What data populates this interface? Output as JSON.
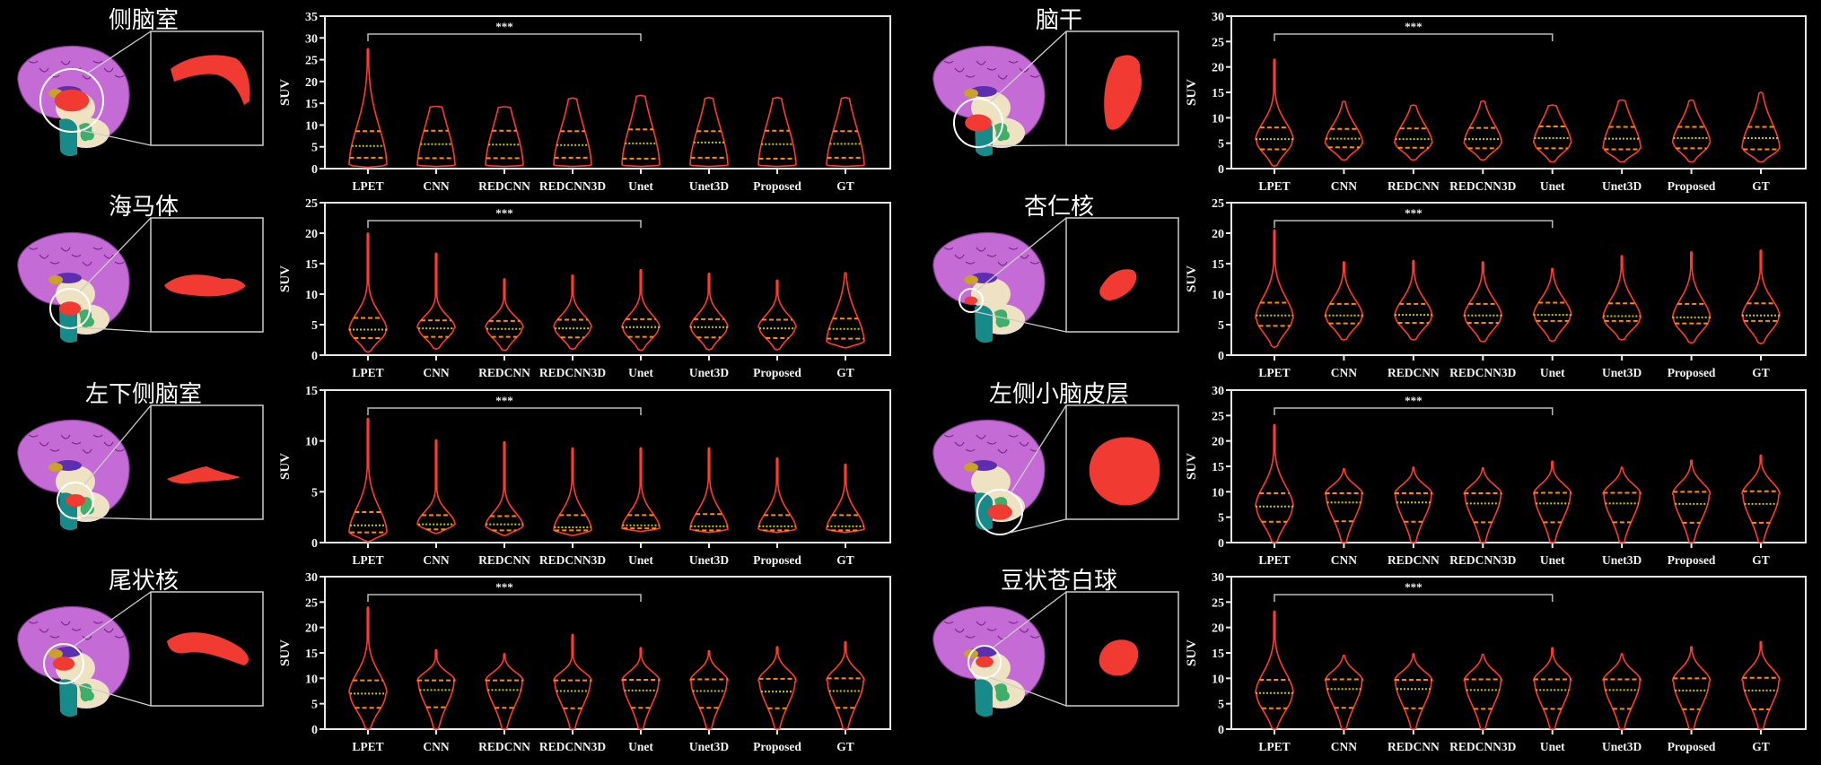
{
  "colors": {
    "background": "#000000",
    "violin_outline": "#ff3b30",
    "quartile_line": "#ff8c00",
    "median_line": "#c8c800",
    "axis": "#e8e8e8",
    "bracket": "#bbbbbb",
    "cortex": "#c46bd6",
    "highlight": "#f03a32"
  },
  "panels": [
    {
      "title": "侧脑室"
    },
    {
      "title": "海马体"
    },
    {
      "title": "左下侧脑室"
    },
    {
      "title": "尾状核"
    },
    {
      "title": "脑干"
    },
    {
      "title": "杏仁核"
    },
    {
      "title": "左侧小脑皮层"
    },
    {
      "title": "豆状苍白球"
    }
  ],
  "chart_data": [
    {
      "type": "violin",
      "ylabel": "SUV",
      "ylim": [
        0,
        35
      ],
      "yticks": [
        0,
        5,
        10,
        15,
        20,
        25,
        30,
        35
      ],
      "categories": [
        "LPET",
        "CNN",
        "REDCNN",
        "REDCNN3D",
        "Unet",
        "Unet3D",
        "Proposed",
        "GT"
      ],
      "significance": {
        "label": "***",
        "from": "LPET",
        "to": "Unet"
      },
      "stats": [
        {
          "min": 0.3,
          "q1": 2.5,
          "median": 5.2,
          "q3": 8.6,
          "max": 27.5,
          "mode": 0.8
        },
        {
          "min": 0.5,
          "q1": 2.4,
          "median": 5.6,
          "q3": 8.7,
          "max": 14.3,
          "mode": 0.8
        },
        {
          "min": 0.5,
          "q1": 2.4,
          "median": 5.5,
          "q3": 8.7,
          "max": 14.2,
          "mode": 0.8
        },
        {
          "min": 0.5,
          "q1": 2.5,
          "median": 5.4,
          "q3": 8.6,
          "max": 16.2,
          "mode": 0.8
        },
        {
          "min": 0.5,
          "q1": 2.3,
          "median": 5.8,
          "q3": 9.0,
          "max": 16.8,
          "mode": 0.8
        },
        {
          "min": 0.5,
          "q1": 2.5,
          "median": 6.0,
          "q3": 8.6,
          "max": 16.3,
          "mode": 0.8
        },
        {
          "min": 0.5,
          "q1": 2.3,
          "median": 5.6,
          "q3": 8.7,
          "max": 16.3,
          "mode": 0.8
        },
        {
          "min": 0.5,
          "q1": 2.5,
          "median": 5.7,
          "q3": 8.6,
          "max": 16.3,
          "mode": 0.8
        }
      ]
    },
    {
      "type": "violin",
      "ylabel": "SUV",
      "ylim": [
        0,
        25
      ],
      "yticks": [
        0,
        5,
        10,
        15,
        20,
        25
      ],
      "categories": [
        "LPET",
        "CNN",
        "REDCNN",
        "REDCNN3D",
        "Unet",
        "Unet3D",
        "Proposed",
        "GT"
      ],
      "significance": {
        "label": "***",
        "from": "LPET",
        "to": "Unet"
      },
      "stats": [
        {
          "min": 0.5,
          "q1": 2.8,
          "median": 4.2,
          "q3": 6.1,
          "max": 20.0,
          "mode": 4.0
        },
        {
          "min": 1.0,
          "q1": 3.0,
          "median": 4.4,
          "q3": 5.7,
          "max": 16.7,
          "mode": 4.5
        },
        {
          "min": 0.8,
          "q1": 3.0,
          "median": 4.3,
          "q3": 5.6,
          "max": 12.5,
          "mode": 4.5
        },
        {
          "min": 1.0,
          "q1": 2.9,
          "median": 4.4,
          "q3": 5.8,
          "max": 13.1,
          "mode": 4.5
        },
        {
          "min": 0.8,
          "q1": 3.0,
          "median": 4.6,
          "q3": 5.9,
          "max": 14.0,
          "mode": 4.5
        },
        {
          "min": 0.9,
          "q1": 2.9,
          "median": 4.6,
          "q3": 5.9,
          "max": 13.4,
          "mode": 4.5
        },
        {
          "min": 0.9,
          "q1": 2.8,
          "median": 4.4,
          "q3": 5.8,
          "max": 12.3,
          "mode": 4.5
        },
        {
          "min": 1.2,
          "q1": 2.7,
          "median": 4.3,
          "q3": 6.0,
          "max": 13.5,
          "mode": 2.2
        }
      ]
    },
    {
      "type": "violin",
      "ylabel": "SUV",
      "ylim": [
        0,
        15
      ],
      "yticks": [
        0,
        5,
        10,
        15
      ],
      "categories": [
        "LPET",
        "CNN",
        "REDCNN",
        "REDCNN3D",
        "Unet",
        "Unet3D",
        "Proposed",
        "GT"
      ],
      "significance": {
        "label": "***",
        "from": "LPET",
        "to": "Unet"
      },
      "stats": [
        {
          "min": 0.1,
          "q1": 1.0,
          "median": 1.7,
          "q3": 3.0,
          "max": 12.2,
          "mode": 1.0
        },
        {
          "min": 0.9,
          "q1": 1.3,
          "median": 1.8,
          "q3": 2.7,
          "max": 10.1,
          "mode": 1.8
        },
        {
          "min": 0.7,
          "q1": 1.2,
          "median": 1.8,
          "q3": 2.6,
          "max": 9.9,
          "mode": 1.6
        },
        {
          "min": 0.7,
          "q1": 1.2,
          "median": 1.5,
          "q3": 2.7,
          "max": 9.3,
          "mode": 1.2
        },
        {
          "min": 1.1,
          "q1": 1.4,
          "median": 1.7,
          "q3": 2.7,
          "max": 9.3,
          "mode": 1.4
        },
        {
          "min": 1.0,
          "q1": 1.2,
          "median": 1.6,
          "q3": 2.8,
          "max": 9.3,
          "mode": 1.3
        },
        {
          "min": 1.0,
          "q1": 1.2,
          "median": 1.6,
          "q3": 2.7,
          "max": 8.3,
          "mode": 1.3
        },
        {
          "min": 1.0,
          "q1": 1.2,
          "median": 1.6,
          "q3": 2.7,
          "max": 7.7,
          "mode": 1.3
        }
      ]
    },
    {
      "type": "violin",
      "ylabel": "SUV",
      "ylim": [
        0,
        30
      ],
      "yticks": [
        0,
        5,
        10,
        15,
        20,
        25,
        30
      ],
      "categories": [
        "LPET",
        "CNN",
        "REDCNN",
        "REDCNN3D",
        "Unet",
        "Unet3D",
        "Proposed",
        "GT"
      ],
      "significance": {
        "label": "***",
        "from": "LPET",
        "to": "Unet"
      },
      "stats": [
        {
          "min": 0,
          "q1": 4.2,
          "median": 7.0,
          "q3": 9.6,
          "max": 24.0,
          "mode": 7.0
        },
        {
          "min": 0,
          "q1": 4.3,
          "median": 7.7,
          "q3": 9.6,
          "max": 15.6,
          "mode": 9.5
        },
        {
          "min": 0,
          "q1": 4.2,
          "median": 7.7,
          "q3": 9.6,
          "max": 14.8,
          "mode": 9.5
        },
        {
          "min": 0,
          "q1": 4.1,
          "median": 7.5,
          "q3": 9.6,
          "max": 18.6,
          "mode": 9.5
        },
        {
          "min": 0,
          "q1": 4.2,
          "median": 7.6,
          "q3": 9.7,
          "max": 16.0,
          "mode": 9.5
        },
        {
          "min": 0,
          "q1": 4.2,
          "median": 7.5,
          "q3": 9.8,
          "max": 15.4,
          "mode": 9.5
        },
        {
          "min": 0,
          "q1": 4.1,
          "median": 7.4,
          "q3": 9.9,
          "max": 16.2,
          "mode": 9.5
        },
        {
          "min": 0,
          "q1": 4.2,
          "median": 7.5,
          "q3": 10.0,
          "max": 17.2,
          "mode": 9.5
        }
      ]
    },
    {
      "type": "violin",
      "ylabel": "SUV",
      "ylim": [
        0,
        30
      ],
      "yticks": [
        0,
        5,
        10,
        15,
        20,
        25,
        30
      ],
      "categories": [
        "LPET",
        "CNN",
        "REDCNN",
        "REDCNN3D",
        "Unet",
        "Unet3D",
        "Proposed",
        "GT"
      ],
      "significance": {
        "label": "***",
        "from": "LPET",
        "to": "Unet"
      },
      "stats": [
        {
          "min": 0.5,
          "q1": 3.8,
          "median": 5.8,
          "q3": 8.1,
          "max": 21.5,
          "mode": 5.5
        },
        {
          "min": 1.7,
          "q1": 4.2,
          "median": 5.9,
          "q3": 7.8,
          "max": 13.2,
          "mode": 5.0
        },
        {
          "min": 1.7,
          "q1": 4.1,
          "median": 5.8,
          "q3": 7.9,
          "max": 12.5,
          "mode": 5.0
        },
        {
          "min": 1.7,
          "q1": 4.0,
          "median": 5.8,
          "q3": 8.0,
          "max": 13.3,
          "mode": 5.0
        },
        {
          "min": 1.3,
          "q1": 4.0,
          "median": 6.0,
          "q3": 8.3,
          "max": 12.5,
          "mode": 5.0
        },
        {
          "min": 1.3,
          "q1": 3.8,
          "median": 5.9,
          "q3": 8.2,
          "max": 13.5,
          "mode": 4.0
        },
        {
          "min": 1.3,
          "q1": 4.0,
          "median": 6.0,
          "q3": 8.2,
          "max": 13.5,
          "mode": 5.0
        },
        {
          "min": 1.3,
          "q1": 3.8,
          "median": 6.0,
          "q3": 8.2,
          "max": 15.0,
          "mode": 4.0
        }
      ]
    },
    {
      "type": "violin",
      "ylabel": "SUV",
      "ylim": [
        0,
        25
      ],
      "yticks": [
        0,
        5,
        10,
        15,
        20,
        25
      ],
      "categories": [
        "LPET",
        "CNN",
        "REDCNN",
        "REDCNN3D",
        "Unet",
        "Unet3D",
        "Proposed",
        "GT"
      ],
      "significance": {
        "label": "***",
        "from": "LPET",
        "to": "Unet"
      },
      "stats": [
        {
          "min": 1.3,
          "q1": 4.8,
          "median": 6.5,
          "q3": 8.6,
          "max": 20.5,
          "mode": 6.0
        },
        {
          "min": 2.5,
          "q1": 5.2,
          "median": 6.5,
          "q3": 8.4,
          "max": 15.3,
          "mode": 6.3
        },
        {
          "min": 2.5,
          "q1": 5.3,
          "median": 6.6,
          "q3": 8.4,
          "max": 15.5,
          "mode": 6.3
        },
        {
          "min": 2.2,
          "q1": 5.3,
          "median": 6.5,
          "q3": 8.4,
          "max": 15.3,
          "mode": 6.3
        },
        {
          "min": 2.3,
          "q1": 5.6,
          "median": 6.6,
          "q3": 8.6,
          "max": 14.2,
          "mode": 6.5
        },
        {
          "min": 2.5,
          "q1": 5.6,
          "median": 6.4,
          "q3": 8.5,
          "max": 16.3,
          "mode": 6.0
        },
        {
          "min": 2.0,
          "q1": 5.2,
          "median": 6.2,
          "q3": 8.4,
          "max": 16.9,
          "mode": 6.0
        },
        {
          "min": 1.9,
          "q1": 5.6,
          "median": 6.5,
          "q3": 8.5,
          "max": 17.2,
          "mode": 6.3
        }
      ]
    },
    {
      "type": "violin",
      "ylabel": "SUV",
      "ylim": [
        0,
        30
      ],
      "yticks": [
        0,
        5,
        10,
        15,
        20,
        25,
        30
      ],
      "categories": [
        "LPET",
        "CNN",
        "REDCNN",
        "REDCNN3D",
        "Unet",
        "Unet3D",
        "Proposed",
        "GT"
      ],
      "significance": {
        "label": "***",
        "from": "LPET",
        "to": "Unet"
      },
      "stats": [
        {
          "min": 0,
          "q1": 4.1,
          "median": 7.1,
          "q3": 9.7,
          "max": 23.2,
          "mode": 7.0
        },
        {
          "min": 0,
          "q1": 4.2,
          "median": 7.9,
          "q3": 9.7,
          "max": 14.5,
          "mode": 9.5
        },
        {
          "min": 0,
          "q1": 4.1,
          "median": 7.9,
          "q3": 9.7,
          "max": 14.8,
          "mode": 9.5
        },
        {
          "min": 0,
          "q1": 4.0,
          "median": 7.7,
          "q3": 9.7,
          "max": 14.7,
          "mode": 9.5
        },
        {
          "min": 0,
          "q1": 4.0,
          "median": 7.7,
          "q3": 9.8,
          "max": 16.0,
          "mode": 9.5
        },
        {
          "min": 0,
          "q1": 4.0,
          "median": 7.7,
          "q3": 9.8,
          "max": 14.8,
          "mode": 9.5
        },
        {
          "min": 0,
          "q1": 3.9,
          "median": 7.6,
          "q3": 10.0,
          "max": 16.2,
          "mode": 9.5
        },
        {
          "min": 0,
          "q1": 3.9,
          "median": 7.6,
          "q3": 10.1,
          "max": 17.2,
          "mode": 9.5
        }
      ]
    },
    {
      "type": "violin",
      "ylabel": "SUV",
      "ylim": [
        0,
        30
      ],
      "yticks": [
        0,
        5,
        10,
        15,
        20,
        25,
        30
      ],
      "categories": [
        "LPET",
        "CNN",
        "REDCNN",
        "REDCNN3D",
        "Unet",
        "Unet3D",
        "Proposed",
        "GT"
      ],
      "significance": {
        "label": "***",
        "from": "LPET",
        "to": "Unet"
      },
      "stats": [
        {
          "min": 0,
          "q1": 4.1,
          "median": 7.1,
          "q3": 9.7,
          "max": 23.2,
          "mode": 7.0
        },
        {
          "min": 0,
          "q1": 4.2,
          "median": 7.9,
          "q3": 9.8,
          "max": 14.5,
          "mode": 9.5
        },
        {
          "min": 0,
          "q1": 4.1,
          "median": 7.9,
          "q3": 9.7,
          "max": 14.8,
          "mode": 9.5
        },
        {
          "min": 0,
          "q1": 4.0,
          "median": 7.7,
          "q3": 9.8,
          "max": 14.7,
          "mode": 9.5
        },
        {
          "min": 0,
          "q1": 4.0,
          "median": 7.7,
          "q3": 9.8,
          "max": 16.0,
          "mode": 9.5
        },
        {
          "min": 0,
          "q1": 4.0,
          "median": 7.7,
          "q3": 9.8,
          "max": 14.8,
          "mode": 9.5
        },
        {
          "min": 0,
          "q1": 3.9,
          "median": 7.6,
          "q3": 10.0,
          "max": 16.2,
          "mode": 9.5
        },
        {
          "min": 0,
          "q1": 3.9,
          "median": 7.6,
          "q3": 10.1,
          "max": 17.2,
          "mode": 9.5
        }
      ]
    }
  ]
}
